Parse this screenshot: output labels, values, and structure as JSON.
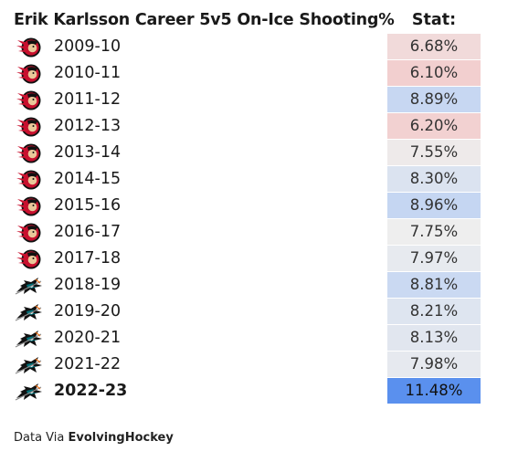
{
  "title": "Erik Karlsson Career 5v5 On-Ice Shooting%",
  "column_header": "Stat:",
  "footer": {
    "prefix": "Data Via",
    "source": "EvolvingHockey"
  },
  "colors": {
    "low": "#f2cfcf",
    "mid": "#eeeeee",
    "high": "#c5d6f2",
    "max": "#5a90ee"
  },
  "chart_data": {
    "type": "table",
    "title": "Erik Karlsson Career 5v5 On-Ice Shooting%",
    "columns": [
      "",
      "Stat:"
    ],
    "rows": [
      {
        "season": "2009-10",
        "team_icon": "ottawa-senators-logo",
        "stat": "6.68%",
        "value": 6.68,
        "bold": false
      },
      {
        "season": "2010-11",
        "team_icon": "ottawa-senators-logo",
        "stat": "6.10%",
        "value": 6.1,
        "bold": false
      },
      {
        "season": "2011-12",
        "team_icon": "ottawa-senators-logo",
        "stat": "8.89%",
        "value": 8.89,
        "bold": false
      },
      {
        "season": "2012-13",
        "team_icon": "ottawa-senators-logo",
        "stat": "6.20%",
        "value": 6.2,
        "bold": false
      },
      {
        "season": "2013-14",
        "team_icon": "ottawa-senators-logo",
        "stat": "7.55%",
        "value": 7.55,
        "bold": false
      },
      {
        "season": "2014-15",
        "team_icon": "ottawa-senators-logo",
        "stat": "8.30%",
        "value": 8.3,
        "bold": false
      },
      {
        "season": "2015-16",
        "team_icon": "ottawa-senators-logo",
        "stat": "8.96%",
        "value": 8.96,
        "bold": false
      },
      {
        "season": "2016-17",
        "team_icon": "ottawa-senators-logo",
        "stat": "7.75%",
        "value": 7.75,
        "bold": false
      },
      {
        "season": "2017-18",
        "team_icon": "ottawa-senators-logo",
        "stat": "7.97%",
        "value": 7.97,
        "bold": false
      },
      {
        "season": "2018-19",
        "team_icon": "san-jose-sharks-logo",
        "stat": "8.81%",
        "value": 8.81,
        "bold": false
      },
      {
        "season": "2019-20",
        "team_icon": "san-jose-sharks-logo",
        "stat": "8.21%",
        "value": 8.21,
        "bold": false
      },
      {
        "season": "2020-21",
        "team_icon": "san-jose-sharks-logo",
        "stat": "8.13%",
        "value": 8.13,
        "bold": false
      },
      {
        "season": "2021-22",
        "team_icon": "san-jose-sharks-logo",
        "stat": "7.98%",
        "value": 7.98,
        "bold": false
      },
      {
        "season": "2022-23",
        "team_icon": "san-jose-sharks-logo",
        "stat": "11.48%",
        "value": 11.48,
        "bold": true
      }
    ]
  }
}
